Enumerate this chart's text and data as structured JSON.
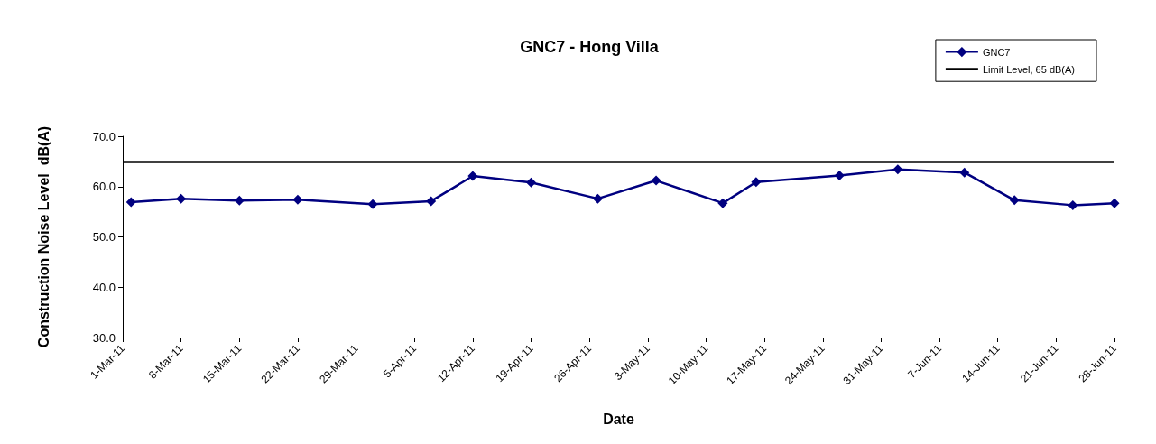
{
  "chart_data": {
    "type": "line",
    "title": "GNC7 - Hong Villa",
    "xlabel": "Date",
    "ylabel": "Construction Noise Level  dB(A)",
    "x": [
      "--03-02",
      "--03-08",
      "--03-15",
      "--03-22",
      "--03-31",
      "--04-07",
      "--04-12",
      "--04-19",
      "--04-27",
      "--05-04",
      "--05-12",
      "--05-16",
      "--05-26",
      "--06-02",
      "--06-10",
      "--06-16",
      "--06-23",
      "--06-28"
    ],
    "series": [
      {
        "name": "GNC7",
        "color": "#000080",
        "values": [
          56.9,
          57.6,
          57.2,
          57.4,
          56.5,
          57.1,
          62.1,
          60.8,
          57.6,
          61.2,
          56.7,
          60.9,
          62.2,
          63.4,
          62.8,
          57.3,
          56.3,
          56.7
        ]
      }
    ],
    "ref_lines": [
      {
        "axis": "y",
        "value": 65,
        "label": "Limit Level, 65 dB(A)",
        "color": "#000000",
        "line_style": "solid"
      }
    ],
    "xlim": [
      "--03-01",
      "--06-28"
    ],
    "xticks": [
      {
        "value": "--03-01",
        "label": "1-Mar-11"
      },
      {
        "value": "--03-08",
        "label": "8-Mar-11"
      },
      {
        "value": "--03-15",
        "label": "15-Mar-11"
      },
      {
        "value": "--03-22",
        "label": "22-Mar-11"
      },
      {
        "value": "--03-29",
        "label": "29-Mar-11"
      },
      {
        "value": "--04-05",
        "label": "5-Apr-11"
      },
      {
        "value": "--04-12",
        "label": "12-Apr-11"
      },
      {
        "value": "--04-19",
        "label": "19-Apr-11"
      },
      {
        "value": "--04-26",
        "label": "26-Apr-11"
      },
      {
        "value": "--05-03",
        "label": "3-May-11"
      },
      {
        "value": "--05-10",
        "label": "10-May-11"
      },
      {
        "value": "--05-17",
        "label": "17-May-11"
      },
      {
        "value": "--05-24",
        "label": "24-May-11"
      },
      {
        "value": "--05-31",
        "label": "31-May-11"
      },
      {
        "value": "--06-07",
        "label": "7-Jun-11"
      },
      {
        "value": "--06-14",
        "label": "14-Jun-11"
      },
      {
        "value": "--06-21",
        "label": "21-Jun-11"
      },
      {
        "value": "--06-28",
        "label": "28-Jun-11"
      }
    ],
    "ylim": [
      30,
      70
    ],
    "yticks": [
      {
        "value": 30,
        "label": "30.0"
      },
      {
        "value": 40,
        "label": "40.0"
      },
      {
        "value": 50,
        "label": "50.0"
      },
      {
        "value": 60,
        "label": "60.0"
      },
      {
        "value": 70,
        "label": "70.0"
      }
    ],
    "grid": false,
    "legend": "top right",
    "marker": "diamond",
    "line_style": "solid"
  }
}
